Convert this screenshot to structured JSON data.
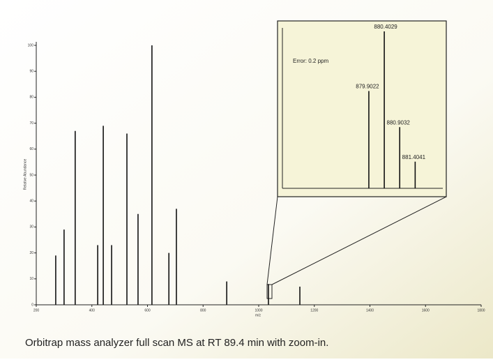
{
  "chart_data": [
    {
      "type": "stick",
      "x_label": "m/z",
      "y_label": "Relative Abundance",
      "x": [
        270,
        300,
        340,
        421,
        441,
        471,
        526,
        566,
        616,
        677,
        704,
        885,
        1035,
        1148
      ],
      "values": [
        19,
        29,
        67,
        23,
        69,
        23,
        66,
        35,
        100,
        20,
        37,
        9,
        8,
        7
      ],
      "color": "#111111",
      "xlim": [
        200,
        1800
      ],
      "xticks": [
        200,
        400,
        600,
        800,
        1000,
        1200,
        1400,
        1600,
        1800
      ],
      "ylim": [
        0,
        100
      ],
      "yticks": [
        0,
        10,
        20,
        30,
        40,
        50,
        60,
        70,
        80,
        90,
        100
      ]
    },
    {
      "type": "stick",
      "annotation": "Error: 0.2 ppm",
      "x": [
        879.9022,
        880.4029,
        880.9032,
        881.4041
      ],
      "values": [
        62,
        100,
        39,
        17
      ],
      "color": "#111111",
      "xlim": [
        877.1,
        882.3
      ],
      "ylim": [
        0,
        100
      ]
    }
  ],
  "caption": "Orbitrap mass analyzer full scan MS at RT 89.4 min with zoom-in."
}
